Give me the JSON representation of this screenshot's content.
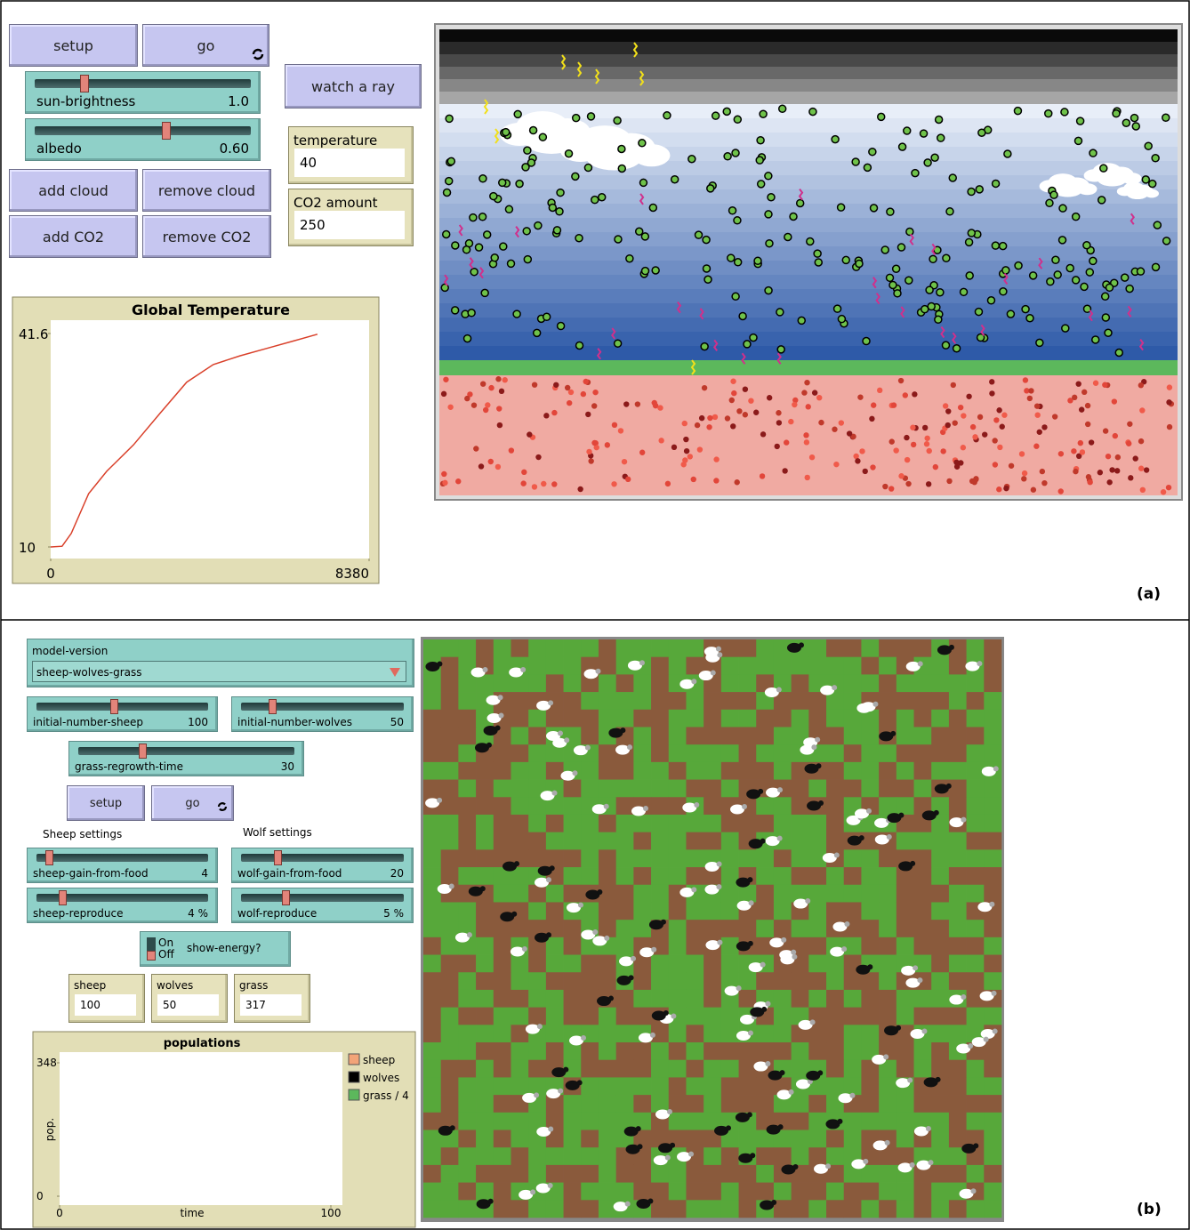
{
  "panel_a": {
    "buttons": [
      "setup",
      "go",
      "watch a ray",
      "add cloud",
      "remove cloud",
      "add CO2",
      "remove CO2"
    ],
    "sliders": [
      {
        "name": "sun-brightness",
        "value": "1.0"
      },
      {
        "name": "albedo",
        "value": "0.60"
      }
    ],
    "monitors": [
      {
        "name": "temperature",
        "value": 40
      },
      {
        "name": "CO2 amount",
        "value": 250
      }
    ],
    "plot": {
      "type": "line",
      "title": "Global Temperature",
      "x": [
        0,
        300,
        540,
        1000,
        1475,
        2177,
        2880,
        3580,
        4280,
        4980,
        5690,
        6390,
        7020
      ],
      "values": [
        10,
        10.1,
        12,
        17.9,
        21.2,
        25.1,
        29.8,
        34.4,
        37,
        38.3,
        39.4,
        40.5,
        41.5
      ],
      "color": "#d9402a",
      "xlim": [
        0,
        8380
      ],
      "ylim": [
        10,
        41.6
      ],
      "xticks": [
        0,
        8380
      ],
      "yticks": [
        10,
        41.6
      ]
    },
    "label": "(a)"
  },
  "panel_b": {
    "chooser": {
      "name": "model-version",
      "value": "sheep-wolves-grass"
    },
    "sliders": [
      {
        "name": "initial-number-sheep",
        "value": 100
      },
      {
        "name": "initial-number-wolves",
        "value": 50
      },
      {
        "name": "grass-regrowth-time",
        "value": 30
      },
      {
        "name": "sheep-gain-from-food",
        "value": 4
      },
      {
        "name": "wolf-gain-from-food",
        "value": 20
      },
      {
        "name": "sheep-reproduce",
        "value": "4 %"
      },
      {
        "name": "wolf-reproduce",
        "value": "5 %"
      }
    ],
    "buttons": [
      "setup",
      "go"
    ],
    "section_labels": [
      "Sheep settings",
      "Wolf settings"
    ],
    "switch": {
      "on": "On",
      "off": "Off",
      "name": "show-energy?"
    },
    "monitors": [
      {
        "name": "sheep",
        "value": 100
      },
      {
        "name": "wolves",
        "value": 50
      },
      {
        "name": "grass",
        "value": 317
      }
    ],
    "plot": {
      "type": "line",
      "title": "populations",
      "xlabel": "time",
      "ylabel": "pop.",
      "xlim": [
        0,
        100
      ],
      "ylim": [
        0,
        348
      ],
      "xticks": [
        0,
        100
      ],
      "yticks": [
        0,
        348
      ],
      "series": [
        {
          "name": "sheep",
          "color": "#f2a478"
        },
        {
          "name": "wolves",
          "color": "#000000"
        },
        {
          "name": "grass / 4",
          "color": "#5cb85c"
        }
      ]
    },
    "label": "(b)"
  }
}
